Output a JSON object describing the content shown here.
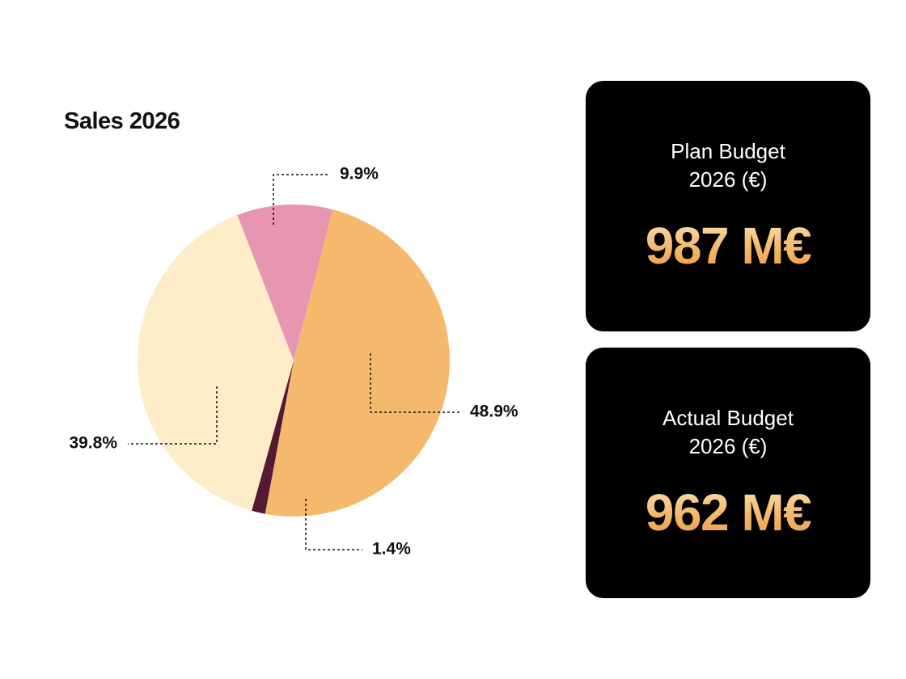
{
  "chart_data": {
    "type": "pie",
    "title": "Sales 2026",
    "slices": [
      {
        "label": "48.9%",
        "value": 48.9,
        "color": "#f4b96d"
      },
      {
        "label": "1.4%",
        "value": 1.4,
        "color": "#541a34"
      },
      {
        "label": "39.8%",
        "value": 39.8,
        "color": "#ffedc9"
      },
      {
        "label": "9.9%",
        "value": 9.9,
        "color": "#e796b1"
      }
    ]
  },
  "cards": {
    "plan": {
      "label_line1": "Plan Budget",
      "label_line2": "2026 (€)",
      "value": "987 M€"
    },
    "actual": {
      "label_line1": "Actual Budget",
      "label_line2": "2026 (€)",
      "value": "962 M€"
    }
  },
  "colors": {
    "card_background": "#000000",
    "value_gradient_top": "#fbe3b6",
    "value_gradient_bottom": "#ee9a44"
  }
}
